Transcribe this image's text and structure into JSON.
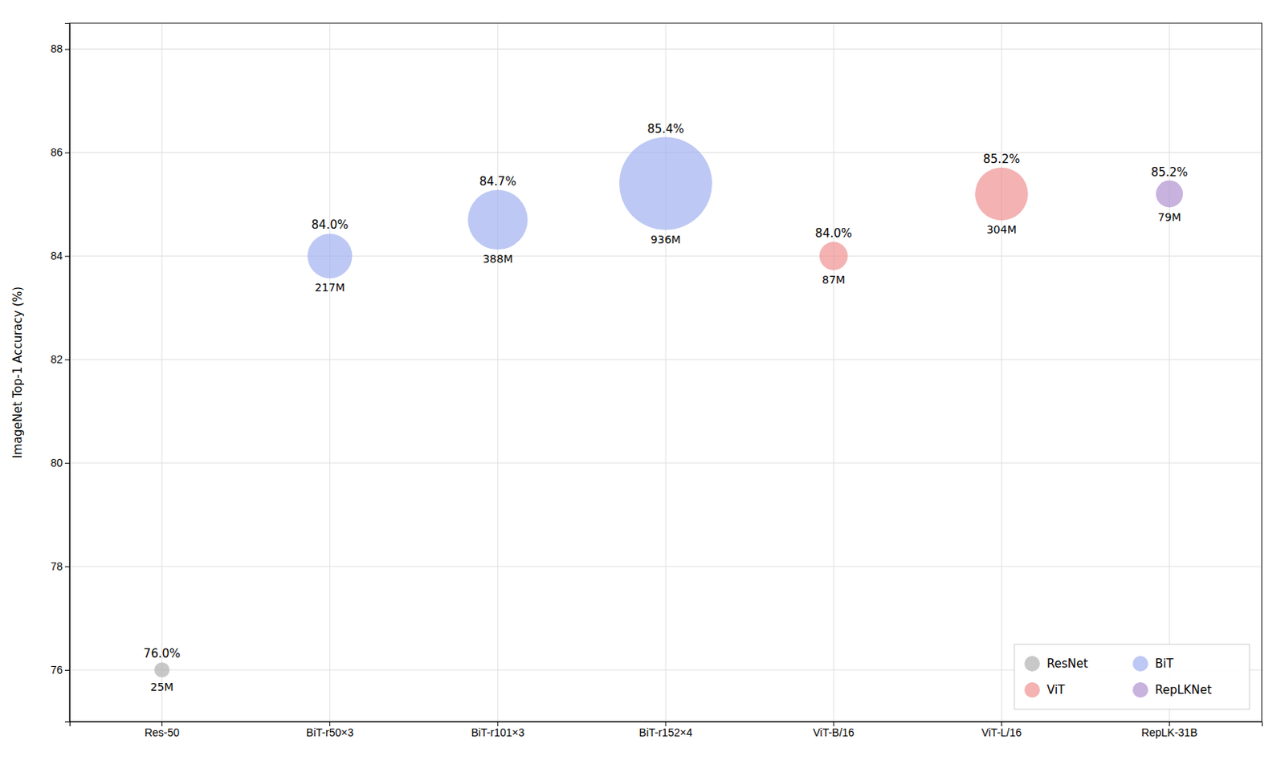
{
  "chart_data": {
    "type": "bubble",
    "categories": [
      "Res-50",
      "BiT-r50×3",
      "BiT-r101×3",
      "BiT-r152×4",
      "ViT-B/16",
      "ViT-L/16",
      "RepLK-31B"
    ],
    "series": [
      {
        "name": "ResNet",
        "color": "#aaaaaa",
        "values": [
          76.0,
          null,
          null,
          null,
          null,
          null,
          null
        ],
        "value_labels": [
          "76.0%",
          null,
          null,
          null,
          null,
          null,
          null
        ],
        "sizes": [
          25,
          null,
          null,
          null,
          null,
          null,
          null
        ],
        "size_labels": [
          "25M",
          null,
          null,
          null,
          null,
          null,
          null
        ]
      },
      {
        "name": "BiT",
        "color": "#99aaee",
        "values": [
          null,
          84.0,
          84.7,
          85.4,
          null,
          null,
          null
        ],
        "value_labels": [
          null,
          "84.0%",
          "84.7%",
          "85.4%",
          null,
          null,
          null
        ],
        "sizes": [
          null,
          217,
          388,
          936,
          null,
          null,
          null
        ],
        "size_labels": [
          null,
          "217M",
          "388M",
          "936M",
          null,
          null,
          null
        ]
      },
      {
        "name": "ViT",
        "color": "#ee8888",
        "values": [
          null,
          null,
          null,
          null,
          84.0,
          85.2,
          null
        ],
        "value_labels": [
          null,
          null,
          null,
          null,
          "84.0%",
          "85.2%",
          null
        ],
        "sizes": [
          null,
          null,
          null,
          null,
          87,
          304,
          null
        ],
        "size_labels": [
          null,
          null,
          null,
          null,
          "87M",
          "304M",
          null
        ]
      },
      {
        "name": "RepLKNet",
        "color": "#aa88cc",
        "values": [
          null,
          null,
          null,
          null,
          null,
          null,
          85.2
        ],
        "value_labels": [
          null,
          null,
          null,
          null,
          null,
          null,
          "85.2%"
        ],
        "sizes": [
          null,
          null,
          null,
          null,
          null,
          null,
          79
        ],
        "size_labels": [
          null,
          null,
          null,
          null,
          null,
          null,
          "79M"
        ]
      }
    ],
    "y_label": "ImageNet Top-1 Accuracy (%)",
    "ylim": [
      75.0,
      88.5
    ],
    "yticks": [
      76,
      78,
      80,
      82,
      84,
      86,
      88
    ],
    "grid": true,
    "legend": "lower right",
    "data_labels": true
  }
}
